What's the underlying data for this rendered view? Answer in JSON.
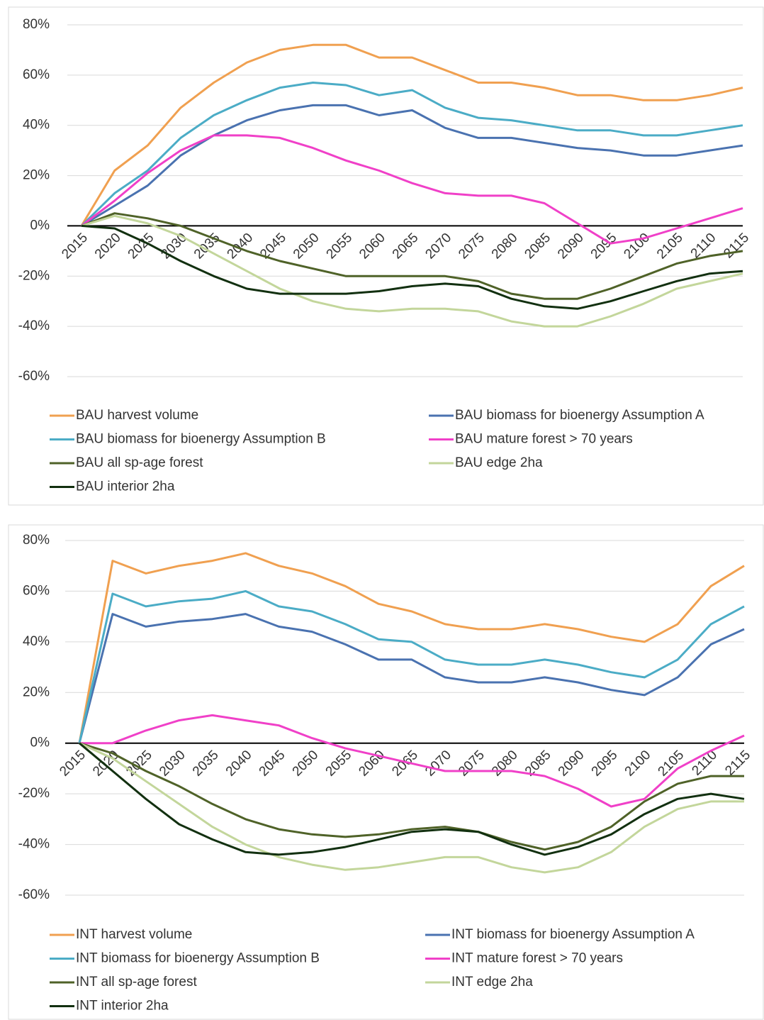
{
  "chart_data": [
    {
      "type": "line",
      "categories": [
        "2015",
        "2020",
        "2025",
        "2030",
        "2035",
        "2040",
        "2045",
        "2050",
        "2055",
        "2060",
        "2065",
        "2070",
        "2075",
        "2080",
        "2085",
        "2090",
        "2095",
        "2100",
        "2105",
        "2110",
        "2115"
      ],
      "ylim": [
        -60,
        80
      ],
      "yticks": [
        {
          "value": -60,
          "label": "-60%"
        },
        {
          "value": -40,
          "label": "-40%"
        },
        {
          "value": -20,
          "label": "-20%"
        },
        {
          "value": 0,
          "label": "0%"
        },
        {
          "value": 20,
          "label": "20%"
        },
        {
          "value": 40,
          "label": "40%"
        },
        {
          "value": 60,
          "label": "60%"
        },
        {
          "value": 80,
          "label": "80%"
        }
      ],
      "grid": true,
      "series": [
        {
          "name": "BAU harvest volume",
          "color": "#f0a050",
          "values": [
            0,
            22,
            32,
            47,
            57,
            65,
            70,
            72,
            72,
            67,
            67,
            62,
            57,
            57,
            55,
            52,
            52,
            50,
            50,
            52,
            55
          ]
        },
        {
          "name": "BAU biomass for bioenergy Assumption A",
          "color": "#4a72b0",
          "values": [
            0,
            8,
            16,
            28,
            36,
            42,
            46,
            48,
            48,
            44,
            46,
            39,
            35,
            35,
            33,
            31,
            30,
            28,
            28,
            30,
            32
          ]
        },
        {
          "name": "BAU biomass for bioenergy Assumption B",
          "color": "#4bacc6",
          "values": [
            0,
            13,
            22,
            35,
            44,
            50,
            55,
            57,
            56,
            52,
            54,
            47,
            43,
            42,
            40,
            38,
            38,
            36,
            36,
            38,
            40
          ]
        },
        {
          "name": "BAU mature forest > 70 years",
          "color": "#f040c8",
          "values": [
            0,
            10,
            21,
            30,
            36,
            36,
            35,
            31,
            26,
            22,
            17,
            13,
            12,
            12,
            9,
            1,
            -7,
            -5,
            -1,
            3,
            7
          ]
        },
        {
          "name": "BAU all sp-age forest",
          "color": "#4f6228",
          "values": [
            0,
            5,
            3,
            0,
            -5,
            -10,
            -14,
            -17,
            -20,
            -20,
            -20,
            -20,
            -22,
            -27,
            -29,
            -29,
            -25,
            -20,
            -15,
            -12,
            -10
          ]
        },
        {
          "name": "BAU edge 2ha",
          "color": "#c3d69b",
          "values": [
            0,
            4,
            1,
            -4,
            -11,
            -18,
            -25,
            -30,
            -33,
            -34,
            -33,
            -33,
            -34,
            -38,
            -40,
            -40,
            -36,
            -31,
            -25,
            -22,
            -19
          ]
        },
        {
          "name": "BAU interior 2ha",
          "color": "#123010",
          "values": [
            0,
            -1,
            -7,
            -14,
            -20,
            -25,
            -27,
            -27,
            -27,
            -26,
            -24,
            -23,
            -24,
            -29,
            -32,
            -33,
            -30,
            -26,
            -22,
            -19,
            -18
          ]
        }
      ]
    },
    {
      "type": "line",
      "categories": [
        "2015",
        "2020",
        "2025",
        "2030",
        "2035",
        "2040",
        "2045",
        "2050",
        "2055",
        "2060",
        "2065",
        "2070",
        "2075",
        "2080",
        "2085",
        "2090",
        "2095",
        "2100",
        "2105",
        "2110",
        "2115"
      ],
      "ylim": [
        -60,
        80
      ],
      "yticks": [
        {
          "value": -60,
          "label": "-60%"
        },
        {
          "value": -40,
          "label": "-40%"
        },
        {
          "value": -20,
          "label": "-20%"
        },
        {
          "value": 0,
          "label": "0%"
        },
        {
          "value": 20,
          "label": "20%"
        },
        {
          "value": 40,
          "label": "40%"
        },
        {
          "value": 60,
          "label": "60%"
        },
        {
          "value": 80,
          "label": "80%"
        }
      ],
      "grid": true,
      "series": [
        {
          "name": "INT harvest volume",
          "color": "#f0a050",
          "values": [
            0,
            72,
            67,
            70,
            72,
            75,
            70,
            67,
            62,
            55,
            52,
            47,
            45,
            45,
            47,
            45,
            42,
            40,
            47,
            62,
            70
          ]
        },
        {
          "name": "INT biomass for bioenergy Assumption A",
          "color": "#4a72b0",
          "values": [
            0,
            51,
            46,
            48,
            49,
            51,
            46,
            44,
            39,
            33,
            33,
            26,
            24,
            24,
            26,
            24,
            21,
            19,
            26,
            39,
            45
          ]
        },
        {
          "name": "INT biomass for bioenergy Assumption B",
          "color": "#4bacc6",
          "values": [
            0,
            59,
            54,
            56,
            57,
            60,
            54,
            52,
            47,
            41,
            40,
            33,
            31,
            31,
            33,
            31,
            28,
            26,
            33,
            47,
            54
          ]
        },
        {
          "name": "INT mature forest > 70 years",
          "color": "#f040c8",
          "values": [
            0,
            0,
            5,
            9,
            11,
            9,
            7,
            2,
            -2,
            -5,
            -8,
            -11,
            -11,
            -11,
            -13,
            -18,
            -25,
            -22,
            -10,
            -3,
            3
          ]
        },
        {
          "name": "INT all sp-age forest",
          "color": "#4f6228",
          "values": [
            0,
            -4,
            -11,
            -17,
            -24,
            -30,
            -34,
            -36,
            -37,
            -36,
            -34,
            -33,
            -35,
            -39,
            -42,
            -39,
            -33,
            -23,
            -16,
            -13,
            -13
          ]
        },
        {
          "name": "INT edge 2ha",
          "color": "#c3d69b",
          "values": [
            0,
            -6,
            -15,
            -24,
            -33,
            -40,
            -45,
            -48,
            -50,
            -49,
            -47,
            -45,
            -45,
            -49,
            -51,
            -49,
            -43,
            -33,
            -26,
            -23,
            -23
          ]
        },
        {
          "name": "INT interior 2ha",
          "color": "#123010",
          "values": [
            0,
            -11,
            -22,
            -32,
            -38,
            -43,
            -44,
            -43,
            -41,
            -38,
            -35,
            -34,
            -35,
            -40,
            -44,
            -41,
            -36,
            -28,
            -22,
            -20,
            -22
          ]
        }
      ]
    }
  ]
}
